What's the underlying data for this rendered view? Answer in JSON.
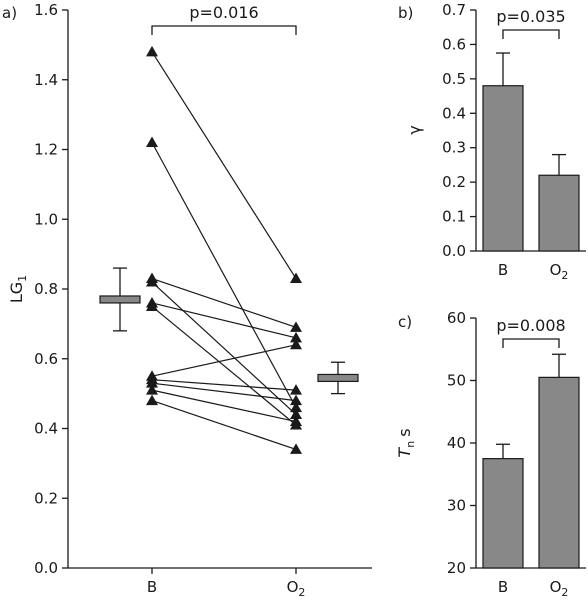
{
  "chart_data": [
    {
      "panel": "a)",
      "type": "scatter",
      "ylabel_main": "LG",
      "ylabel_sub": "1",
      "categories": [
        "B",
        "O2"
      ],
      "category_labels": [
        {
          "main": "B",
          "sub": ""
        },
        {
          "main": "O",
          "sub": "2"
        }
      ],
      "ylim": [
        0,
        1.6
      ],
      "yticks": [
        "0.0",
        "0.2",
        "0.4",
        "0.6",
        "0.8",
        "1.0",
        "1.2",
        "1.4",
        "1.6"
      ],
      "pairs": [
        [
          1.48,
          0.83
        ],
        [
          1.22,
          0.46
        ],
        [
          0.83,
          0.69
        ],
        [
          0.82,
          0.44
        ],
        [
          0.76,
          0.66
        ],
        [
          0.75,
          0.41
        ],
        [
          0.55,
          0.64
        ],
        [
          0.54,
          0.51
        ],
        [
          0.53,
          0.48
        ],
        [
          0.51,
          0.42
        ],
        [
          0.48,
          0.34
        ]
      ],
      "summary": [
        {
          "category": "B",
          "mean": 0.77,
          "box_low": 0.76,
          "box_high": 0.78,
          "err_low": 0.68,
          "err_high": 0.86
        },
        {
          "category": "O2",
          "mean": 0.545,
          "box_low": 0.535,
          "box_high": 0.555,
          "err_low": 0.5,
          "err_high": 0.59
        }
      ],
      "annotation": "p=0.016"
    },
    {
      "panel": "b)",
      "type": "bar",
      "ylabel": "γ",
      "categories": [
        "B",
        "O2"
      ],
      "category_labels": [
        {
          "main": "B",
          "sub": ""
        },
        {
          "main": "O",
          "sub": "2"
        }
      ],
      "values": [
        0.48,
        0.22
      ],
      "errors": [
        0.095,
        0.06
      ],
      "ylim": [
        0,
        0.7
      ],
      "yticks": [
        "0.0",
        "0.1",
        "0.2",
        "0.3",
        "0.4",
        "0.5",
        "0.6",
        "0.7"
      ],
      "annotation": "p=0.035"
    },
    {
      "panel": "c)",
      "type": "bar",
      "ylabel_main": "T",
      "ylabel_sub": "n",
      "ylabel_unit": "s",
      "categories": [
        "B",
        "O2"
      ],
      "category_labels": [
        {
          "main": "B",
          "sub": ""
        },
        {
          "main": "O",
          "sub": "2"
        }
      ],
      "values": [
        37.5,
        50.5
      ],
      "errors": [
        2.3,
        3.7
      ],
      "ylim": [
        20,
        60
      ],
      "yticks": [
        "20",
        "30",
        "40",
        "50",
        "60"
      ],
      "annotation": "p=0.008"
    }
  ]
}
